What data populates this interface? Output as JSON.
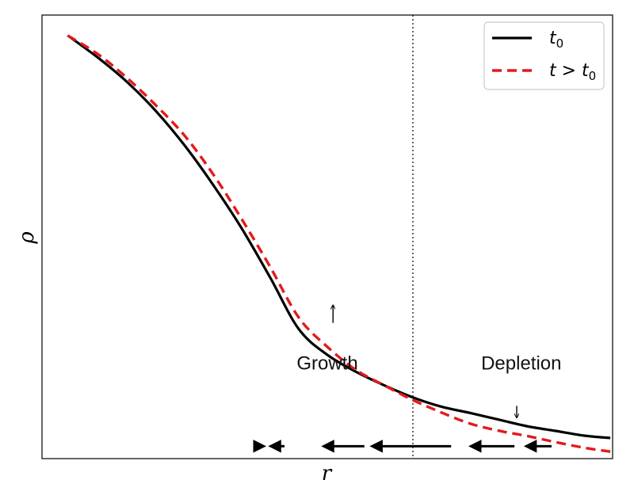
{
  "chart_data": {
    "type": "line",
    "title": "",
    "xlabel": "r",
    "ylabel": "ρ",
    "xlim": [
      0,
      1
    ],
    "ylim": [
      0,
      1
    ],
    "grid": false,
    "legend_position": "top-right",
    "series": [
      {
        "name": "t0",
        "legend_base": "t",
        "legend_sub": "0",
        "color": "#000000",
        "style": "solid",
        "x": [
          0.045,
          0.1,
          0.15,
          0.2,
          0.25,
          0.3,
          0.35,
          0.4,
          0.45,
          0.5,
          0.55,
          0.6,
          0.65,
          0.7,
          0.75,
          0.8,
          0.85,
          0.9,
          0.95,
          0.996
        ],
        "y": [
          0.954,
          0.902,
          0.848,
          0.783,
          0.706,
          0.617,
          0.519,
          0.408,
          0.292,
          0.234,
          0.196,
          0.165,
          0.138,
          0.117,
          0.103,
          0.088,
          0.073,
          0.0625,
          0.0518,
          0.0465
        ]
      },
      {
        "name": "t > t0",
        "legend_base": "t > t",
        "legend_sub": "0",
        "color": "#e41a1c",
        "style": "dashed",
        "x": [
          0.045,
          0.1,
          0.15,
          0.2,
          0.25,
          0.3,
          0.35,
          0.4,
          0.45,
          0.5,
          0.55,
          0.6,
          0.65,
          0.7,
          0.75,
          0.8,
          0.85,
          0.9,
          0.95,
          0.996
        ],
        "y": [
          0.954,
          0.91,
          0.857,
          0.796,
          0.728,
          0.641,
          0.54,
          0.432,
          0.318,
          0.252,
          0.2,
          0.165,
          0.132,
          0.104,
          0.079,
          0.063,
          0.051,
          0.0372,
          0.0245,
          0.0158
        ]
      }
    ],
    "vertical_line": {
      "x": 0.65,
      "style": "dotted"
    },
    "annotations": {
      "growth_label": "Growth",
      "depletion_label": "Depletion",
      "growth_label_pos": {
        "x": 0.5,
        "y": 0.215
      },
      "depletion_label_pos": {
        "x": 0.84,
        "y": 0.215
      },
      "shift_markers": [
        {
          "x": 0.51,
          "y_from": 0.306,
          "y_to": 0.345
        },
        {
          "x": 0.832,
          "y_from": 0.119,
          "y_to": 0.093
        }
      ],
      "flow_arrows": [
        {
          "x_from": 0.382,
          "x_to": 0.375
        },
        {
          "x_from": 0.425,
          "x_to": 0.392
        },
        {
          "x_from": 0.565,
          "x_to": 0.485
        },
        {
          "x_from": 0.717,
          "x_to": 0.57
        },
        {
          "x_from": 0.828,
          "x_to": 0.743
        },
        {
          "x_from": 0.893,
          "x_to": 0.84
        }
      ],
      "flow_arrow_y": 0.028
    }
  },
  "colors": {
    "t0": "#000000",
    "t_gt_t0": "#e41a1c",
    "frame": "#000000"
  }
}
